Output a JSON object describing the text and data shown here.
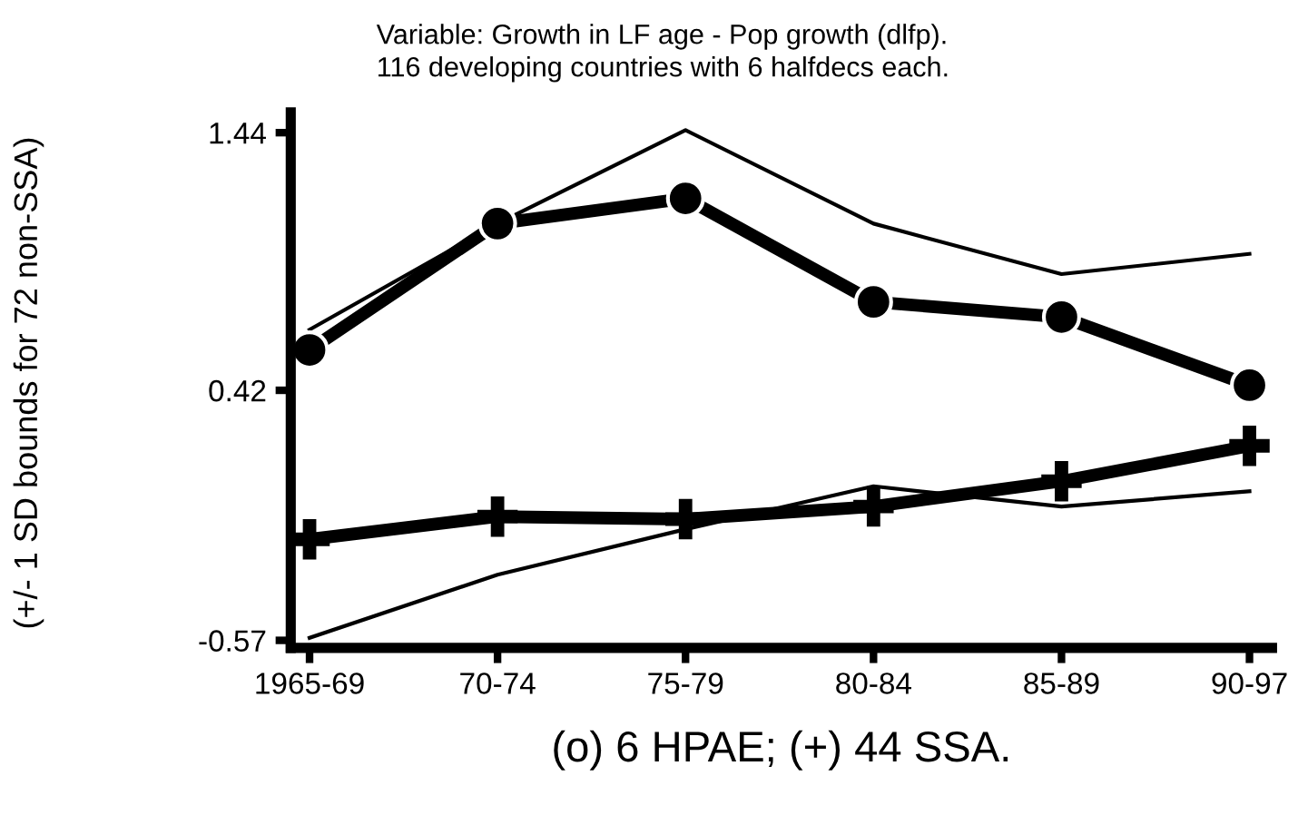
{
  "chart_data": {
    "type": "line",
    "title": "Variable: Growth in LF age - Pop growth (dlfp).",
    "subtitle": "116 developing countries with 6 halfdecs each.",
    "xlabel": "(o) 6 HPAE; (+) 44 SSA.",
    "ylabel": "(+/- 1 SD bounds for 72 non-SSA)",
    "categories": [
      "1965-69",
      "70-74",
      "75-79",
      "80-84",
      "85-89",
      "90-97"
    ],
    "series": [
      {
        "color": "#000000",
        "marker": "none",
        "line_style": "solid",
        "values": [
          0.66,
          1.08,
          1.45,
          1.08,
          0.88,
          0.96
        ]
      },
      {
        "color": "#000000",
        "marker": "none",
        "line_style": "solid",
        "values": [
          -0.56,
          -0.31,
          -0.13,
          0.04,
          -0.04,
          0.02
        ]
      },
      {
        "color": "#000000",
        "marker": "circle",
        "line_style": "solid",
        "values": [
          0.58,
          1.08,
          1.18,
          0.77,
          0.71,
          0.44
        ]
      },
      {
        "color": "#000000",
        "marker": "cross",
        "line_style": "solid",
        "values": [
          -0.17,
          -0.08,
          -0.09,
          -0.04,
          0.06,
          0.2
        ]
      }
    ],
    "ylim": [
      -0.6,
      1.52
    ],
    "yticks": [
      -0.57,
      0.42,
      1.44
    ],
    "grid": false,
    "legend": false
  }
}
